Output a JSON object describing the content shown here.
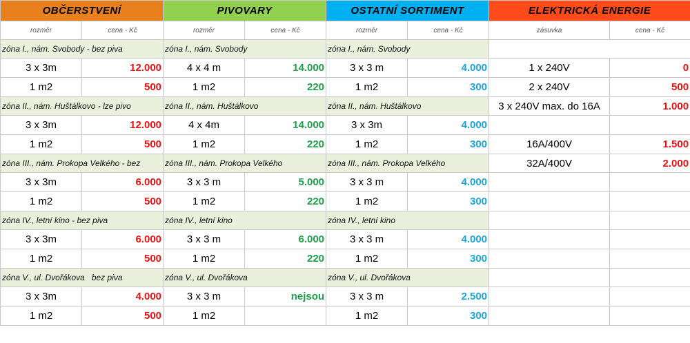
{
  "colors": {
    "obcerstveni_header": "#e8801e",
    "pivovary_header": "#92d050",
    "ostatni_header": "#00b0f0",
    "energie_header": "#ff4a1a",
    "zone_fill": "#eaf0dc",
    "price_red": "#ee1111",
    "price_green": "#1ea04a",
    "price_cyan": "#1aa6d6"
  },
  "headers": {
    "obcerstveni": "OBČERSTVENÍ",
    "pivovary": "PIVOVARY",
    "ostatni": "OSTATNÍ SORTIMENT",
    "energie": "ELEKTRICKÁ ENERGIE"
  },
  "subheaders": {
    "rozmer": "rozměr",
    "cena": "cena - Kč",
    "zasuvka": "zásuvka"
  },
  "zones": [
    {
      "obcerstveni": "zóna I., nám. Svobody - bez piva",
      "pivovary": "zóna I., nám. Svobody",
      "ostatni": "zóna I., nám. Svobody",
      "rows": [
        {
          "o_size": "3 x 3m",
          "o_price": "12.000",
          "p_size": "4 x 4 m",
          "p_price": "14.000",
          "s_size": "3 x 3 m",
          "s_price": "4.000"
        },
        {
          "o_size": "1 m2",
          "o_price": "500",
          "p_size": "1 m2",
          "p_price": "220",
          "s_size": "1 m2",
          "s_price": "300"
        }
      ]
    },
    {
      "obcerstveni": "zóna II., nám. Huštálkovo - lze pivo",
      "pivovary": "zóna II., nám. Huštálkovo",
      "ostatni": "zóna II., nám. Huštálkovo",
      "rows": [
        {
          "o_size": "3 x 3m",
          "o_price": "12.000",
          "p_size": "4 x 4m",
          "p_price": "14.000",
          "s_size": "3 x 3m",
          "s_price": "4.000"
        },
        {
          "o_size": "1 m2",
          "o_price": "500",
          "p_size": "1 m2",
          "p_price": "220",
          "s_size": "1 m2",
          "s_price": "300"
        }
      ]
    },
    {
      "obcerstveni": "zóna III., nám. Prokopa Velkého - bez",
      "pivovary": "zóna III., nám. Prokopa Velkého",
      "ostatni": "zóna III., nám. Prokopa Velkého",
      "rows": [
        {
          "o_size": "3 x 3m",
          "o_price": "6.000",
          "p_size": "3 x 3 m",
          "p_price": "5.000",
          "s_size": "3 x 3 m",
          "s_price": "4.000"
        },
        {
          "o_size": "1 m2",
          "o_price": "500",
          "p_size": "1 m2",
          "p_price": "220",
          "s_size": "1 m2",
          "s_price": "300"
        }
      ]
    },
    {
      "obcerstveni": "zóna IV., letní kino - bez piva",
      "pivovary": "zóna IV., letní kino",
      "ostatni": "zóna IV., letní kino",
      "rows": [
        {
          "o_size": "3 x 3m",
          "o_price": "6.000",
          "p_size": "3 x 3 m",
          "p_price": "6.000",
          "s_size": "3 x 3 m",
          "s_price": "4.000"
        },
        {
          "o_size": "1 m2",
          "o_price": "500",
          "p_size": "1 m2",
          "p_price": "220",
          "s_size": "1 m2",
          "s_price": "300"
        }
      ]
    },
    {
      "obcerstveni": "zóna V., ul. Dvořákova   bez piva",
      "pivovary": "zóna V., ul. Dvořákova",
      "ostatni": "zóna V., ul. Dvořákova",
      "rows": [
        {
          "o_size": "3 x 3m",
          "o_price": "4.000",
          "p_size": "3 x 3 m",
          "p_price": "nejsou",
          "s_size": "3 x 3 m",
          "s_price": "2.500"
        },
        {
          "o_size": "1 m2",
          "o_price": "500",
          "p_size": "1 m2",
          "p_price": "",
          "s_size": "1 m2",
          "s_price": "300"
        }
      ]
    }
  ],
  "energie": [
    {
      "zasuvka": "1 x 240V",
      "cena": "0"
    },
    {
      "zasuvka": "2 x 240V",
      "cena": "500"
    },
    {
      "zasuvka": "3 x 240V max. do 16A",
      "cena": "1.000"
    },
    {
      "zasuvka": "",
      "cena": ""
    },
    {
      "zasuvka": "16A/400V",
      "cena": "1.500"
    },
    {
      "zasuvka": "32A/400V",
      "cena": "2.000"
    }
  ]
}
